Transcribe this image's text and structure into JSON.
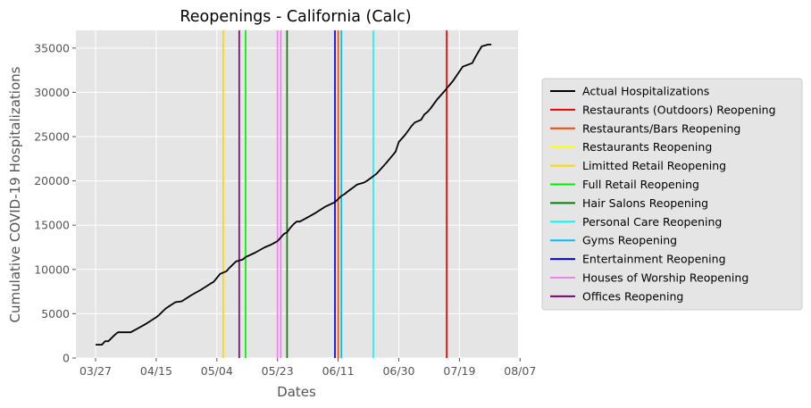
{
  "chart_data": {
    "type": "line",
    "title": "Reopenings - California (Calc)",
    "xlabel": "Dates",
    "ylabel": "Cumulative COVID-19 Hospitalizations",
    "x_tick_labels": [
      "03/27",
      "04/15",
      "05/04",
      "05/23",
      "06/11",
      "06/30",
      "07/19",
      "08/07"
    ],
    "y_ticks": [
      0,
      5000,
      10000,
      15000,
      20000,
      25000,
      30000,
      35000
    ],
    "ylim": [
      0,
      37000
    ],
    "grid": true,
    "legend_placement": "right outside",
    "colors": {
      "plot_background": "#e5e5e5",
      "grid": "#ffffff"
    },
    "series": [
      {
        "name": "Actual Hospitalizations",
        "color": "#000000",
        "x": [
          "03/27",
          "03/29",
          "03/30",
          "03/31",
          "04/02",
          "04/03",
          "04/06",
          "04/07",
          "04/09",
          "04/12",
          "04/15",
          "04/16",
          "04/18",
          "04/21",
          "04/23",
          "04/26",
          "04/29",
          "05/02",
          "05/03",
          "05/05",
          "05/07",
          "05/08",
          "05/10",
          "05/11",
          "05/12",
          "05/13",
          "05/16",
          "05/19",
          "05/21",
          "05/22",
          "05/23",
          "05/25",
          "05/26",
          "05/27",
          "05/28",
          "05/29",
          "05/30",
          "06/01",
          "06/04",
          "06/07",
          "06/10",
          "06/12",
          "06/13",
          "06/14",
          "06/17",
          "06/18",
          "06/19",
          "06/20",
          "06/23",
          "06/26",
          "06/29",
          "06/30",
          "07/02",
          "07/04",
          "07/05",
          "07/07",
          "07/08",
          "07/09",
          "07/10",
          "07/11",
          "07/12",
          "07/14",
          "07/17",
          "07/20",
          "07/23",
          "07/24",
          "07/25",
          "07/26",
          "07/28",
          "07/29"
        ],
        "values": [
          1500,
          1500,
          1900,
          1900,
          2600,
          2900,
          2900,
          2900,
          3300,
          3900,
          4600,
          4900,
          5600,
          6300,
          6400,
          7100,
          7700,
          8400,
          8600,
          9500,
          9800,
          10200,
          10900,
          11000,
          11100,
          11400,
          11900,
          12500,
          12800,
          13000,
          13200,
          14000,
          14200,
          14700,
          15100,
          15400,
          15400,
          15800,
          16400,
          17100,
          17600,
          18300,
          18500,
          18800,
          19600,
          19700,
          19800,
          20000,
          20800,
          22000,
          23300,
          24400,
          25200,
          26200,
          26600,
          26900,
          27500,
          27800,
          28200,
          28700,
          29200,
          30000,
          31300,
          32900,
          33300,
          34000,
          34600,
          35200,
          35400,
          35400
        ]
      }
    ],
    "reopenings": [
      {
        "name": "Restaurants (Outdoors) Reopening",
        "date": "07/15",
        "color": "#ee0000"
      },
      {
        "name": "Restaurants/Bars Reopening",
        "date": "",
        "color": "#ff4500"
      },
      {
        "name": "Restaurants Reopening",
        "date": "",
        "color": "#ffff00"
      },
      {
        "name": "Limitted Retail Reopening",
        "date": "05/06",
        "color": "#ffd700"
      },
      {
        "name": "Full Retail Reopening",
        "date": "05/13",
        "color": "#00ee00"
      },
      {
        "name": "Hair Salons Reopening",
        "date": "05/26",
        "color": "#008000"
      },
      {
        "name": "Personal Care Reopening",
        "date": "06/22",
        "color": "#00ffff"
      },
      {
        "name": "Gyms Reopening",
        "date": "06/12",
        "color": "#00bfff"
      },
      {
        "name": "Entertainment Reopening",
        "date": "06/10",
        "color": "#0000ee"
      },
      {
        "name": "Houses of Worship Reopening",
        "date": "05/23",
        "color": "#ee82ee"
      },
      {
        "name": "Offices Reopening",
        "date": "05/11",
        "color": "#800080"
      }
    ],
    "extra_unlabeled_lines": [
      {
        "date": "06/11",
        "color": "#ff4500"
      },
      {
        "date": "05/24",
        "color": "#ee82ee"
      }
    ]
  }
}
